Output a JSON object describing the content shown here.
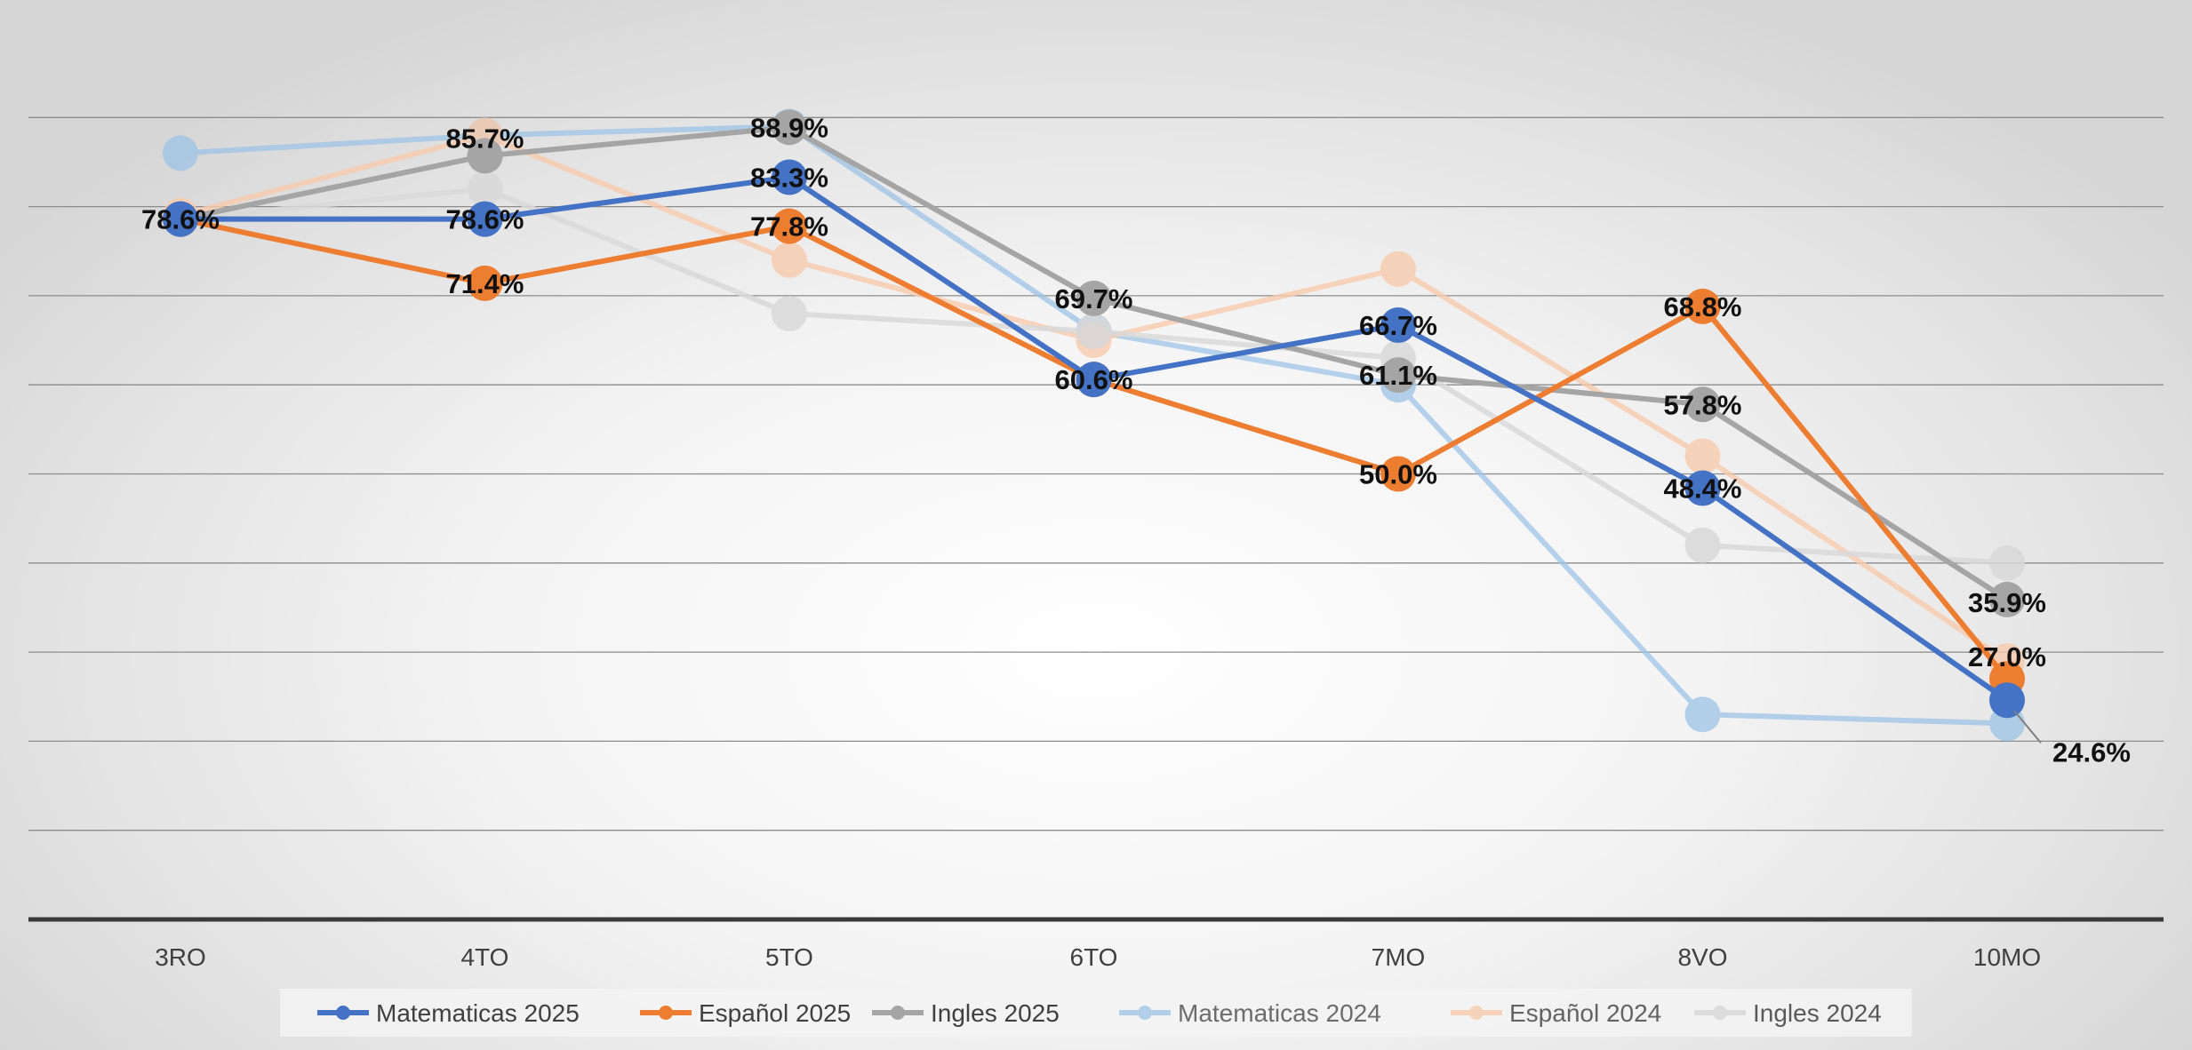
{
  "chart_data": {
    "type": "line",
    "categories": [
      "3RO",
      "4TO",
      "5TO",
      "6TO",
      "7MO",
      "8VO",
      "10MO"
    ],
    "ylim": [
      0,
      100
    ],
    "grid": true,
    "legend_position": "bottom",
    "series": [
      {
        "name": "Matematicas 2024",
        "color": "#9dc3e6",
        "opacity": 0.75,
        "labeled": false,
        "values": [
          86.0,
          88.0,
          89.0,
          66.0,
          60.0,
          23.0,
          22.0
        ]
      },
      {
        "name": "Español 2024",
        "color": "#f8cbad",
        "opacity": 0.8,
        "labeled": false,
        "values": [
          79.0,
          88.0,
          74.0,
          65.0,
          73.0,
          52.0,
          29.0
        ]
      },
      {
        "name": "Ingles 2024",
        "color": "#d9d9d9",
        "opacity": 0.85,
        "labeled": false,
        "values": [
          78.6,
          82.0,
          68.0,
          66.0,
          63.0,
          42.0,
          40.0
        ]
      },
      {
        "name": "Ingles 2025",
        "color": "#a5a5a5",
        "opacity": 1,
        "labeled": true,
        "values": [
          78.6,
          85.7,
          88.9,
          69.7,
          61.1,
          57.8,
          35.9
        ],
        "labels": [
          "",
          "85.7%",
          "88.9%",
          "69.7%",
          "61.1%",
          "57.8%",
          "35.9%"
        ]
      },
      {
        "name": "Español  2025",
        "color": "#ed7d31",
        "opacity": 1,
        "labeled": true,
        "values": [
          78.6,
          71.4,
          77.8,
          60.6,
          50.0,
          68.8,
          27.0
        ],
        "labels": [
          "",
          "71.4%",
          "77.8%",
          "60.6%",
          "50.0%",
          "68.8%",
          "27.0%"
        ]
      },
      {
        "name": "Matematicas 2025",
        "color": "#4472c4",
        "opacity": 1,
        "labeled": true,
        "values": [
          78.6,
          78.6,
          83.3,
          60.6,
          66.7,
          48.4,
          24.6
        ],
        "labels": [
          "78.6%",
          "78.6%",
          "83.3%",
          "",
          "66.7%",
          "48.4%",
          "24.6%"
        ]
      }
    ],
    "legend_order": [
      "Matematicas 2025",
      "Español  2025",
      "Ingles 2025",
      "Matematicas 2024",
      "Español 2024",
      "Ingles 2024"
    ]
  }
}
